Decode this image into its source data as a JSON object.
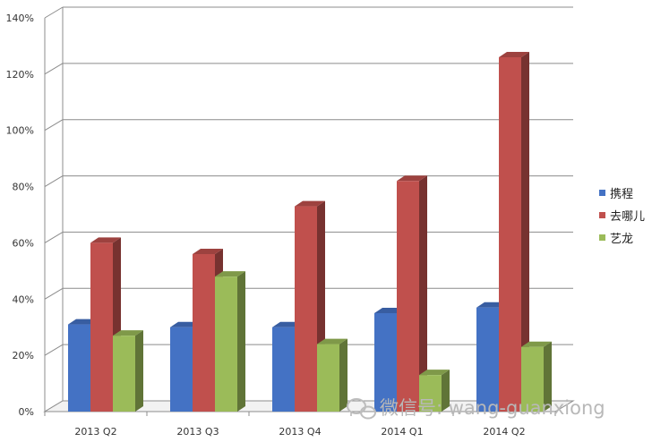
{
  "chart_data": {
    "type": "bar",
    "bar_style": "3d",
    "categories": [
      "2013 Q2",
      "2013 Q3",
      "2013 Q4",
      "2014 Q1",
      "2014 Q2"
    ],
    "series": [
      {
        "name": "携程",
        "color": "#4472c4",
        "values": [
          31,
          30,
          30,
          35,
          37
        ]
      },
      {
        "name": "去哪儿",
        "color": "#c0504d",
        "values": [
          60,
          56,
          73,
          82,
          126
        ]
      },
      {
        "name": "艺龙",
        "color": "#9bbb59",
        "values": [
          27,
          48,
          24,
          13,
          23
        ]
      }
    ],
    "ylim": [
      0,
      140
    ],
    "yticks": [
      "0%",
      "20%",
      "40%",
      "60%",
      "80%",
      "100%",
      "120%",
      "140%"
    ],
    "legend": "right",
    "grid": true
  },
  "watermark": {
    "text": "微信号: wang-guanxiong"
  }
}
